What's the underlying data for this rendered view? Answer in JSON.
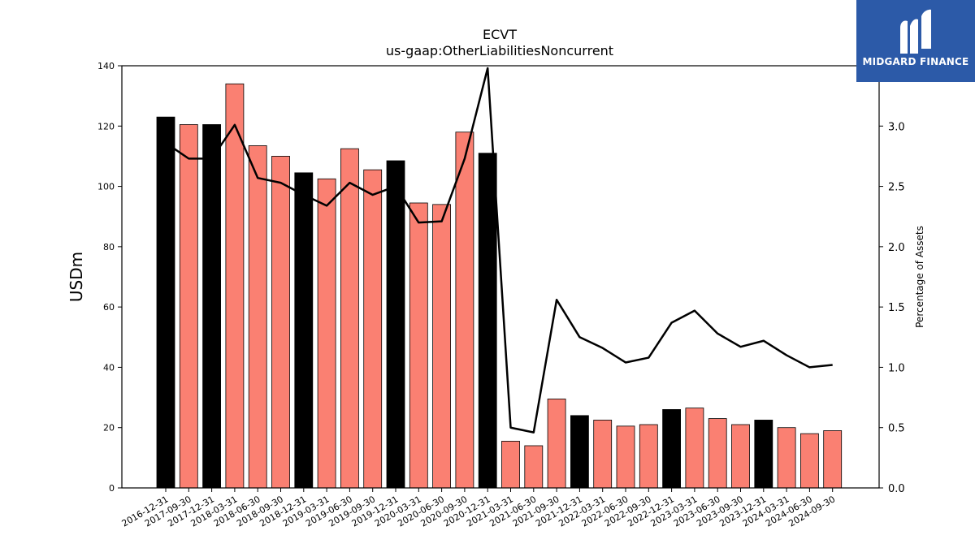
{
  "logo": {
    "text": "MIDGARD FINANCE"
  },
  "chart_data": {
    "type": "bar",
    "title": "ECVT",
    "subtitle": "us-gaap:OtherLiabilitiesNoncurrent",
    "ylabel": "USDm",
    "y2label": "Percentage of Assets",
    "ylim": [
      0,
      140
    ],
    "y2lim": [
      0,
      3.5
    ],
    "yticks": [
      0,
      20,
      40,
      60,
      80,
      100,
      120,
      140
    ],
    "y2ticks": [
      "0.0",
      "0.5",
      "1.0",
      "1.5",
      "2.0",
      "2.5",
      "3.0"
    ],
    "categories": [
      "2016-12-31",
      "2017-09-30",
      "2017-12-31",
      "2018-03-31",
      "2018-06-30",
      "2018-09-30",
      "2018-12-31",
      "2019-03-31",
      "2019-06-30",
      "2019-09-30",
      "2019-12-31",
      "2020-03-31",
      "2020-06-30",
      "2020-09-30",
      "2020-12-31",
      "2021-03-31",
      "2021-06-30",
      "2021-09-30",
      "2021-12-31",
      "2022-03-31",
      "2022-06-30",
      "2022-09-30",
      "2022-12-31",
      "2023-03-31",
      "2023-06-30",
      "2023-09-30",
      "2023-12-31",
      "2024-03-31",
      "2024-06-30",
      "2024-09-30"
    ],
    "series": [
      {
        "type": "bar",
        "axis": "left",
        "values": [
          123,
          120.5,
          120.5,
          134,
          113.5,
          110,
          104.5,
          102.5,
          112.5,
          105.5,
          108.5,
          94.5,
          94,
          118,
          111,
          15.5,
          14,
          29.5,
          24,
          22.5,
          20.5,
          21,
          26,
          26.5,
          23,
          21,
          22.5,
          20,
          18,
          19
        ],
        "annual_color": "#000000",
        "quarter_color": "#fa8072",
        "annual_categories": [
          "2016-12-31",
          "2017-12-31",
          "2018-12-31",
          "2019-12-31",
          "2020-12-31",
          "2021-12-31",
          "2022-12-31",
          "2023-12-31"
        ]
      },
      {
        "type": "line",
        "axis": "right",
        "values": [
          2.86,
          2.73,
          2.73,
          3.01,
          2.57,
          2.53,
          2.43,
          2.34,
          2.53,
          2.43,
          2.5,
          2.2,
          2.21,
          2.73,
          3.48,
          0.5,
          0.46,
          1.56,
          1.25,
          1.16,
          1.04,
          1.08,
          1.37,
          1.47,
          1.28,
          1.17,
          1.22,
          1.1,
          1.0,
          1.02
        ],
        "color": "#000000"
      }
    ]
  }
}
